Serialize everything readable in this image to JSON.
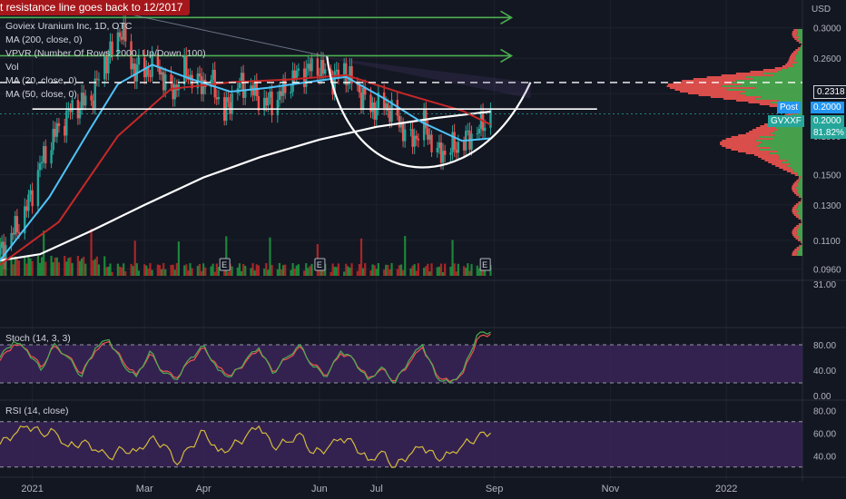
{
  "annotation": "t resistance line goes back to 12/2017",
  "legend": [
    "Goviex Uranium Inc, 1D, OTC",
    "MA (200, close, 0)",
    "VPVR (Number Of Rows, 2000, Up/Down, 100)",
    "Vol",
    "MA (20, close, 0)",
    "MA (50, close, 0)"
  ],
  "currency": "USD",
  "price_labels": {
    "level": "0.2318",
    "post_label": "Post",
    "post_value": "0.2000",
    "symbol": "GVXXF",
    "symbol_value": "0.2000",
    "change": "81.82%"
  },
  "earnings_marker": "E",
  "stoch_label": "Stoch (14, 3, 3)",
  "rsi_label": "RSI (14, close)",
  "colors": {
    "background": "#131722",
    "up": "#26a69a",
    "down": "#ef5350",
    "vol_up": "#1f9a3d",
    "vol_down": "#c62828",
    "ma20": "#4fc3f7",
    "ma50": "#c62828",
    "ma200": "#ffffff",
    "arrows": "#4caf50",
    "stoch_k": "#4caf50",
    "stoch_d": "#ef5350",
    "rsi": "#d4b93c",
    "indicator_band": "#3a2558",
    "vpvr_up": "#4caf50",
    "vpvr_down": "#ef5350"
  },
  "chart_data": [
    {
      "type": "candlestick",
      "title": "Goviex Uranium Inc, 1D, OTC",
      "x_ticks": [
        "2021",
        "Mar",
        "Apr",
        "Jun",
        "Jul",
        "Sep",
        "Nov",
        "2022"
      ],
      "price_ticks": [
        "0.3000",
        "0.2600",
        "0.2200",
        "0.1800",
        "0.1500",
        "0.1300",
        "0.1100",
        "0.0960"
      ],
      "scale": "log",
      "ylim": [
        0.093,
        0.335
      ],
      "x_range": [
        "2020-12-15",
        "2022-02-10"
      ],
      "series_close": [
        [
          "2020-12-15",
          0.103
        ],
        [
          "2020-12-28",
          0.125
        ],
        [
          "2021-01-06",
          0.16
        ],
        [
          "2021-01-14",
          0.185
        ],
        [
          "2021-01-22",
          0.205
        ],
        [
          "2021-02-01",
          0.215
        ],
        [
          "2021-02-08",
          0.255
        ],
        [
          "2021-02-12",
          0.27
        ],
        [
          "2021-02-17",
          0.3
        ],
        [
          "2021-02-22",
          0.25
        ],
        [
          "2021-03-01",
          0.245
        ],
        [
          "2021-03-08",
          0.25
        ],
        [
          "2021-03-15",
          0.22
        ],
        [
          "2021-03-22",
          0.245
        ],
        [
          "2021-03-29",
          0.23
        ],
        [
          "2021-04-05",
          0.235
        ],
        [
          "2021-04-12",
          0.2
        ],
        [
          "2021-04-19",
          0.23
        ],
        [
          "2021-04-26",
          0.225
        ],
        [
          "2021-05-03",
          0.21
        ],
        [
          "2021-05-10",
          0.215
        ],
        [
          "2021-05-17",
          0.235
        ],
        [
          "2021-05-24",
          0.245
        ],
        [
          "2021-05-31",
          0.25
        ],
        [
          "2021-06-07",
          0.235
        ],
        [
          "2021-06-14",
          0.245
        ],
        [
          "2021-06-21",
          0.225
        ],
        [
          "2021-06-28",
          0.205
        ],
        [
          "2021-07-05",
          0.21
        ],
        [
          "2021-07-12",
          0.195
        ],
        [
          "2021-07-19",
          0.175
        ],
        [
          "2021-07-26",
          0.19
        ],
        [
          "2021-08-02",
          0.165
        ],
        [
          "2021-08-09",
          0.17
        ],
        [
          "2021-08-16",
          0.175
        ],
        [
          "2021-08-23",
          0.185
        ],
        [
          "2021-08-30",
          0.2
        ]
      ],
      "ma20": [
        [
          "2020-12-15",
          0.1
        ],
        [
          "2021-01-10",
          0.135
        ],
        [
          "2021-01-31",
          0.185
        ],
        [
          "2021-02-15",
          0.23
        ],
        [
          "2021-03-05",
          0.252
        ],
        [
          "2021-03-25",
          0.236
        ],
        [
          "2021-04-15",
          0.222
        ],
        [
          "2021-05-05",
          0.226
        ],
        [
          "2021-05-25",
          0.232
        ],
        [
          "2021-06-15",
          0.238
        ],
        [
          "2021-07-05",
          0.215
        ],
        [
          "2021-07-25",
          0.192
        ],
        [
          "2021-08-15",
          0.176
        ],
        [
          "2021-08-30",
          0.178
        ]
      ],
      "ma50": [
        [
          "2020-12-15",
          0.098
        ],
        [
          "2021-01-15",
          0.12
        ],
        [
          "2021-02-15",
          0.18
        ],
        [
          "2021-03-15",
          0.225
        ],
        [
          "2021-04-15",
          0.232
        ],
        [
          "2021-05-15",
          0.235
        ],
        [
          "2021-06-15",
          0.24
        ],
        [
          "2021-07-15",
          0.22
        ],
        [
          "2021-08-15",
          0.203
        ],
        [
          "2021-08-30",
          0.19
        ]
      ],
      "ma200": [
        [
          "2020-12-15",
          0.1
        ],
        [
          "2021-01-05",
          0.103
        ],
        [
          "2021-02-01",
          0.115
        ],
        [
          "2021-03-01",
          0.13
        ],
        [
          "2021-04-01",
          0.148
        ],
        [
          "2021-05-01",
          0.163
        ],
        [
          "2021-06-01",
          0.177
        ],
        [
          "2021-07-01",
          0.188
        ],
        [
          "2021-08-01",
          0.196
        ],
        [
          "2021-08-30",
          0.202
        ]
      ],
      "horizontal_line": 0.2318,
      "resistance_line": 0.2045,
      "price_line": 0.2
    },
    {
      "type": "line",
      "title": "Stoch (14, 3, 3)",
      "y_ticks": [
        "80.00",
        "40.00",
        "0.00"
      ],
      "ylim": [
        0,
        100
      ],
      "band": [
        20,
        80
      ],
      "k": [
        60,
        85,
        70,
        40,
        82,
        60,
        30,
        75,
        88,
        50,
        30,
        70,
        35,
        25,
        60,
        78,
        40,
        30,
        55,
        75,
        35,
        60,
        80,
        45,
        30,
        70,
        55,
        25,
        45,
        20,
        55,
        80,
        30,
        20,
        40,
        95,
        100
      ],
      "d": [
        55,
        80,
        72,
        45,
        78,
        62,
        35,
        70,
        85,
        55,
        33,
        65,
        38,
        28,
        55,
        75,
        45,
        32,
        52,
        72,
        38,
        57,
        77,
        48,
        32,
        66,
        56,
        28,
        42,
        23,
        50,
        76,
        34,
        22,
        36,
        88,
        97
      ]
    },
    {
      "type": "line",
      "title": "RSI (14, close)",
      "y_ticks": [
        "80.00",
        "60.00",
        "40.00"
      ],
      "ylim": [
        25,
        85
      ],
      "band": [
        30,
        70
      ],
      "values": [
        50,
        58,
        66,
        60,
        62,
        48,
        52,
        45,
        38,
        46,
        44,
        55,
        50,
        32,
        48,
        62,
        44,
        48,
        56,
        66,
        48,
        52,
        60,
        42,
        46,
        55,
        50,
        36,
        44,
        30,
        40,
        48,
        38,
        42,
        50,
        56,
        60
      ]
    }
  ]
}
